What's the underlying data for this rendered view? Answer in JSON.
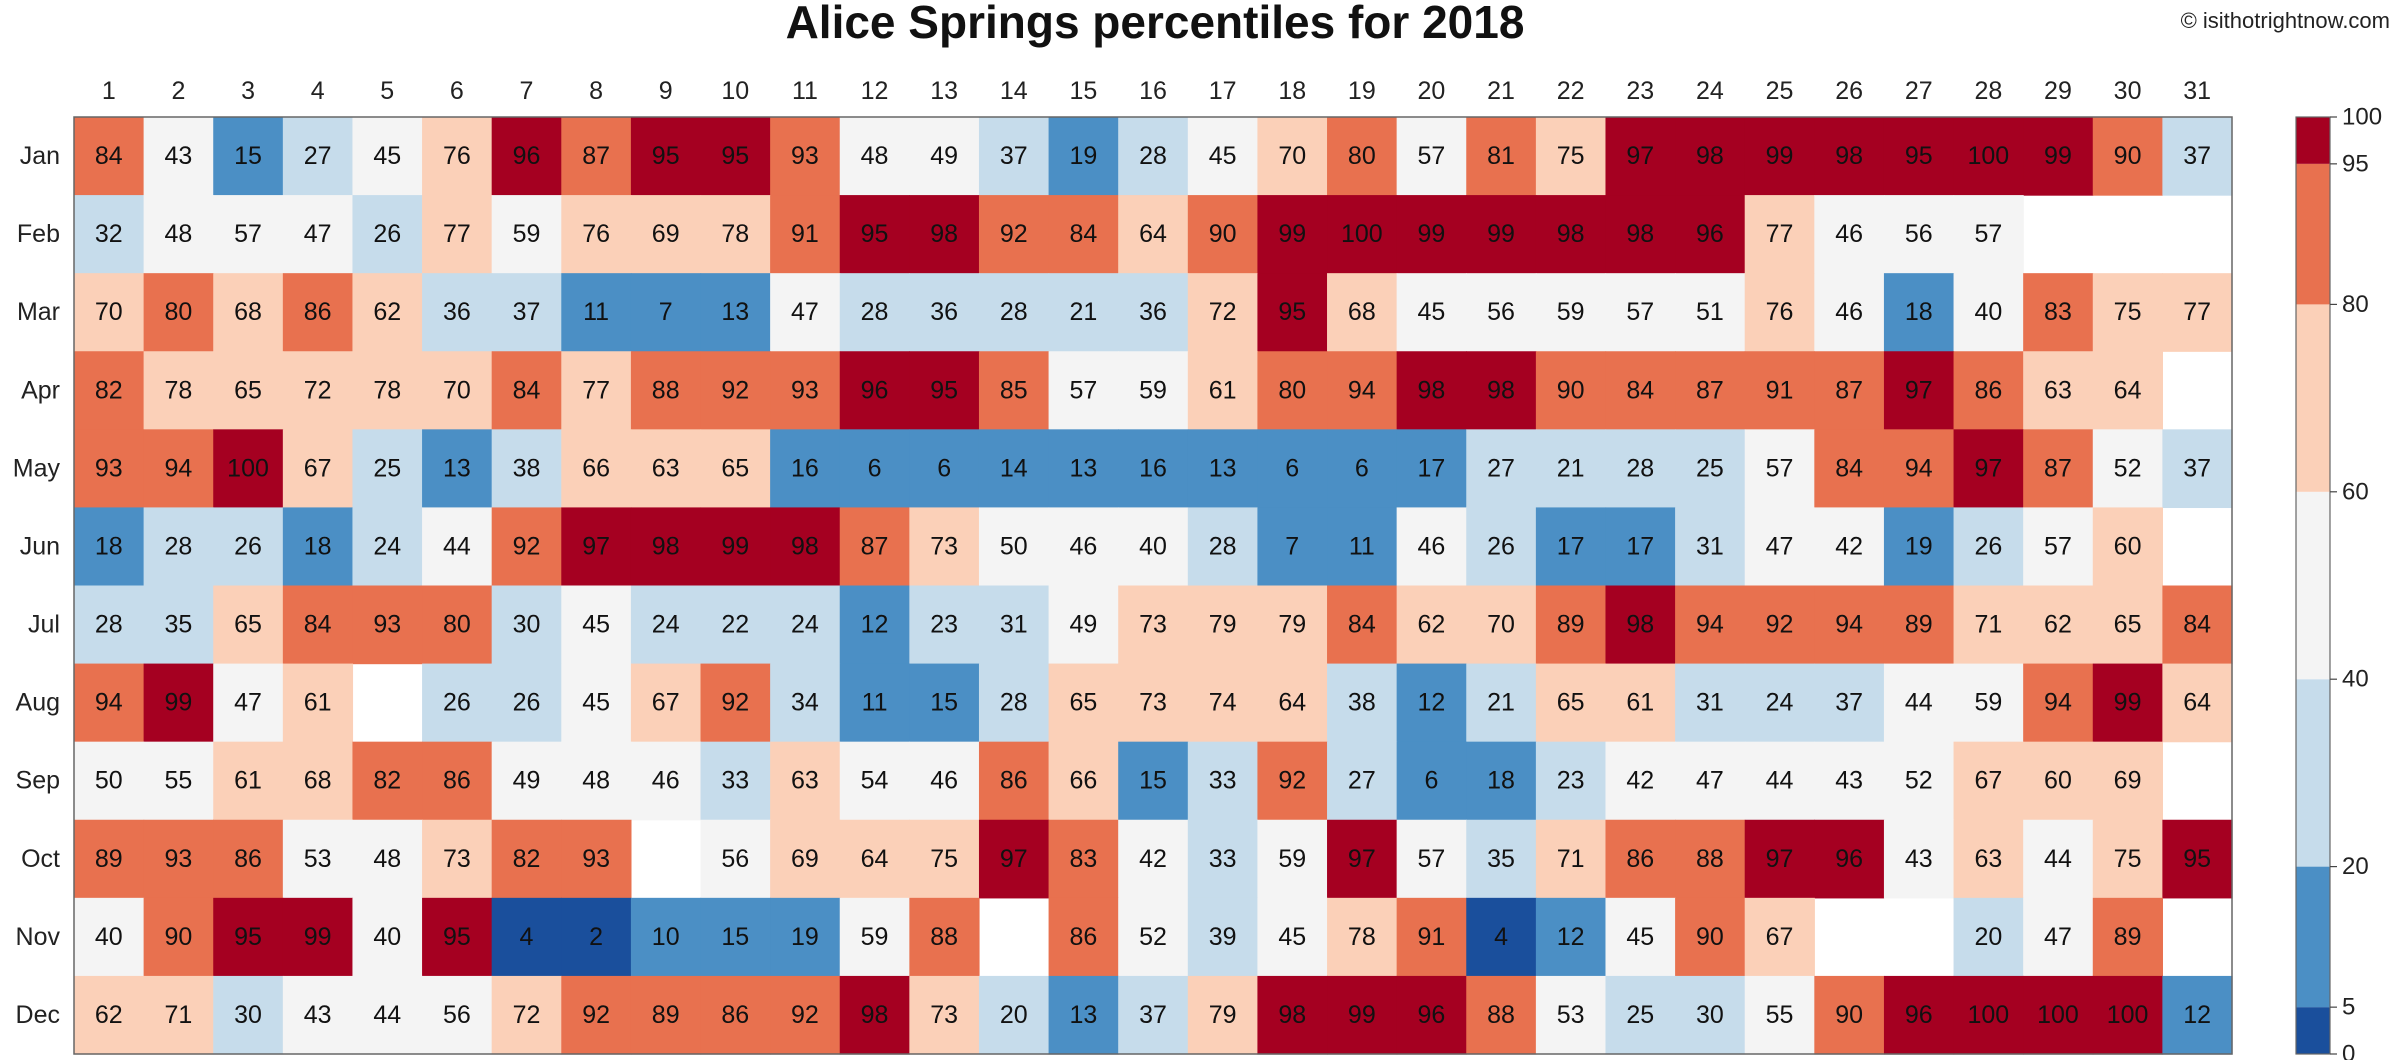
{
  "chart_data": {
    "type": "heatmap",
    "title": "Alice Springs percentiles for 2018",
    "credit": "© isithotrightnow.com",
    "columns": [
      "1",
      "2",
      "3",
      "4",
      "5",
      "6",
      "7",
      "8",
      "9",
      "10",
      "11",
      "12",
      "13",
      "14",
      "15",
      "16",
      "17",
      "18",
      "19",
      "20",
      "21",
      "22",
      "23",
      "24",
      "25",
      "26",
      "27",
      "28",
      "29",
      "30",
      "31"
    ],
    "rows": [
      "Jan",
      "Feb",
      "Mar",
      "Apr",
      "May",
      "Jun",
      "Jul",
      "Aug",
      "Sep",
      "Oct",
      "Nov",
      "Dec"
    ],
    "values": [
      [
        84,
        43,
        15,
        27,
        45,
        76,
        96,
        87,
        95,
        95,
        93,
        48,
        49,
        37,
        19,
        28,
        45,
        70,
        80,
        57,
        81,
        75,
        97,
        98,
        99,
        98,
        95,
        100,
        99,
        90,
        37
      ],
      [
        32,
        48,
        57,
        47,
        26,
        77,
        59,
        76,
        69,
        78,
        91,
        95,
        98,
        92,
        84,
        64,
        90,
        99,
        100,
        99,
        99,
        98,
        98,
        96,
        77,
        46,
        56,
        57,
        null,
        null,
        null
      ],
      [
        70,
        80,
        68,
        86,
        62,
        36,
        37,
        11,
        7,
        13,
        47,
        28,
        36,
        28,
        21,
        36,
        72,
        95,
        68,
        45,
        56,
        59,
        57,
        51,
        76,
        46,
        18,
        40,
        83,
        75,
        77
      ],
      [
        82,
        78,
        65,
        72,
        78,
        70,
        84,
        77,
        88,
        92,
        93,
        96,
        95,
        85,
        57,
        59,
        61,
        80,
        94,
        98,
        98,
        90,
        84,
        87,
        91,
        87,
        97,
        86,
        63,
        64,
        null
      ],
      [
        93,
        94,
        100,
        67,
        25,
        13,
        38,
        66,
        63,
        65,
        16,
        6,
        6,
        14,
        13,
        16,
        13,
        6,
        6,
        17,
        27,
        21,
        28,
        25,
        57,
        84,
        94,
        97,
        87,
        52,
        37
      ],
      [
        18,
        28,
        26,
        18,
        24,
        44,
        92,
        97,
        98,
        99,
        98,
        87,
        73,
        50,
        46,
        40,
        28,
        7,
        11,
        46,
        26,
        17,
        17,
        31,
        47,
        42,
        19,
        26,
        57,
        60,
        null
      ],
      [
        28,
        35,
        65,
        84,
        93,
        80,
        30,
        45,
        24,
        22,
        24,
        12,
        23,
        31,
        49,
        73,
        79,
        79,
        84,
        62,
        70,
        89,
        98,
        94,
        92,
        94,
        89,
        71,
        62,
        65,
        84
      ],
      [
        94,
        99,
        47,
        61,
        null,
        26,
        26,
        45,
        67,
        92,
        34,
        11,
        15,
        28,
        65,
        73,
        74,
        64,
        38,
        12,
        21,
        65,
        61,
        31,
        24,
        37,
        44,
        59,
        94,
        99,
        64
      ],
      [
        50,
        55,
        61,
        68,
        82,
        86,
        49,
        48,
        46,
        33,
        63,
        54,
        46,
        86,
        66,
        15,
        33,
        92,
        27,
        6,
        18,
        23,
        42,
        47,
        44,
        43,
        52,
        67,
        60,
        69,
        null
      ],
      [
        89,
        93,
        86,
        53,
        48,
        73,
        82,
        93,
        null,
        56,
        69,
        64,
        75,
        97,
        83,
        42,
        33,
        59,
        97,
        57,
        35,
        71,
        86,
        88,
        97,
        96,
        43,
        63,
        44,
        75,
        95
      ],
      [
        40,
        90,
        95,
        99,
        40,
        95,
        4,
        2,
        10,
        15,
        19,
        59,
        88,
        null,
        86,
        52,
        39,
        45,
        78,
        91,
        4,
        12,
        45,
        90,
        67,
        null,
        null,
        20,
        47,
        89,
        null
      ],
      [
        62,
        71,
        30,
        43,
        44,
        56,
        72,
        92,
        89,
        86,
        92,
        98,
        73,
        20,
        13,
        37,
        79,
        98,
        99,
        96,
        88,
        53,
        25,
        30,
        55,
        90,
        96,
        100,
        100,
        100,
        12
      ]
    ],
    "colorbar": {
      "bounds": [
        0,
        5,
        20,
        40,
        60,
        80,
        95,
        100
      ],
      "colors": [
        "#1a4f9c",
        "#4b8fc5",
        "#c6dceb",
        "#f4f4f4",
        "#fbd0b8",
        "#e8714f",
        "#a50021"
      ],
      "tick_labels": [
        "0",
        "5",
        "20",
        "40",
        "60",
        "80",
        "95",
        "100"
      ]
    }
  }
}
